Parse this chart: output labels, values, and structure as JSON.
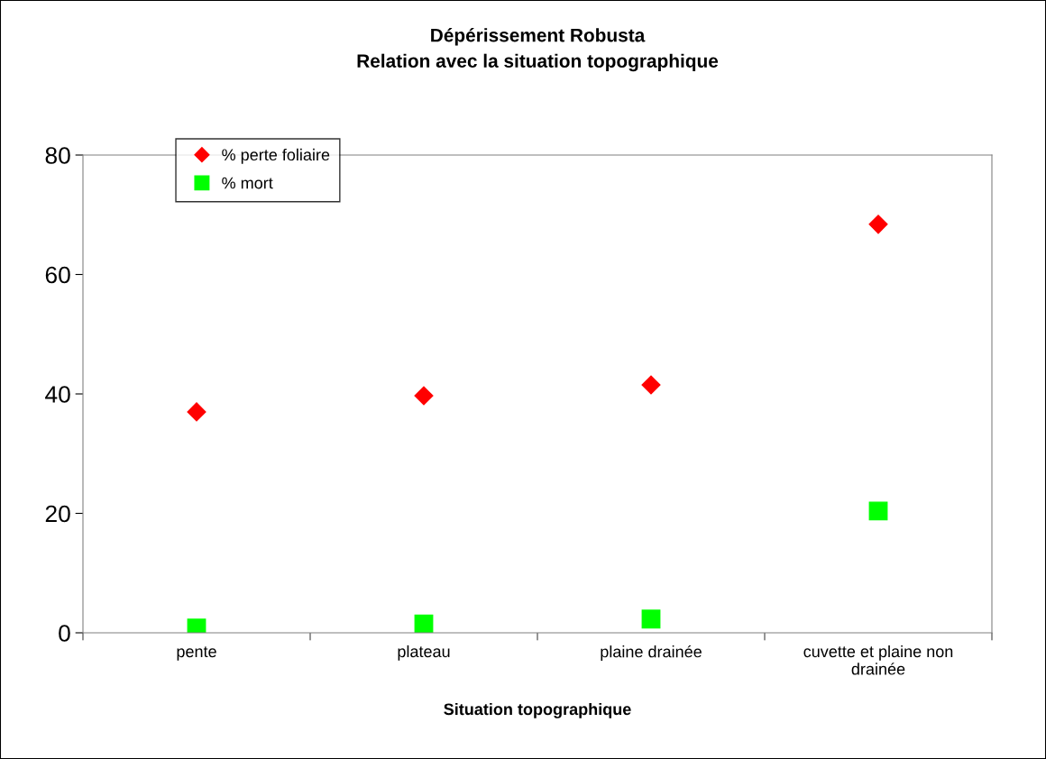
{
  "chart_data": {
    "type": "scatter",
    "title": "Dépérissement Robusta\nRelation avec la situation topographique",
    "xlabel": "Situation topographique",
    "categories": [
      "pente",
      "plateau",
      "plaine drainée",
      "cuvette et plaine non\ndrainée"
    ],
    "series": [
      {
        "name": "% perte foliaire",
        "color": "#ff0000",
        "marker": "diamond",
        "values": [
          37.0,
          39.7,
          41.5,
          68.4
        ]
      },
      {
        "name": "% mort",
        "color": "#00ff00",
        "marker": "square",
        "values": [
          0.8,
          1.5,
          2.3,
          20.4
        ]
      }
    ],
    "ylim": [
      0,
      80
    ],
    "yticks": [
      0,
      20,
      40,
      60,
      80
    ],
    "grid": false,
    "legend": "top left"
  }
}
